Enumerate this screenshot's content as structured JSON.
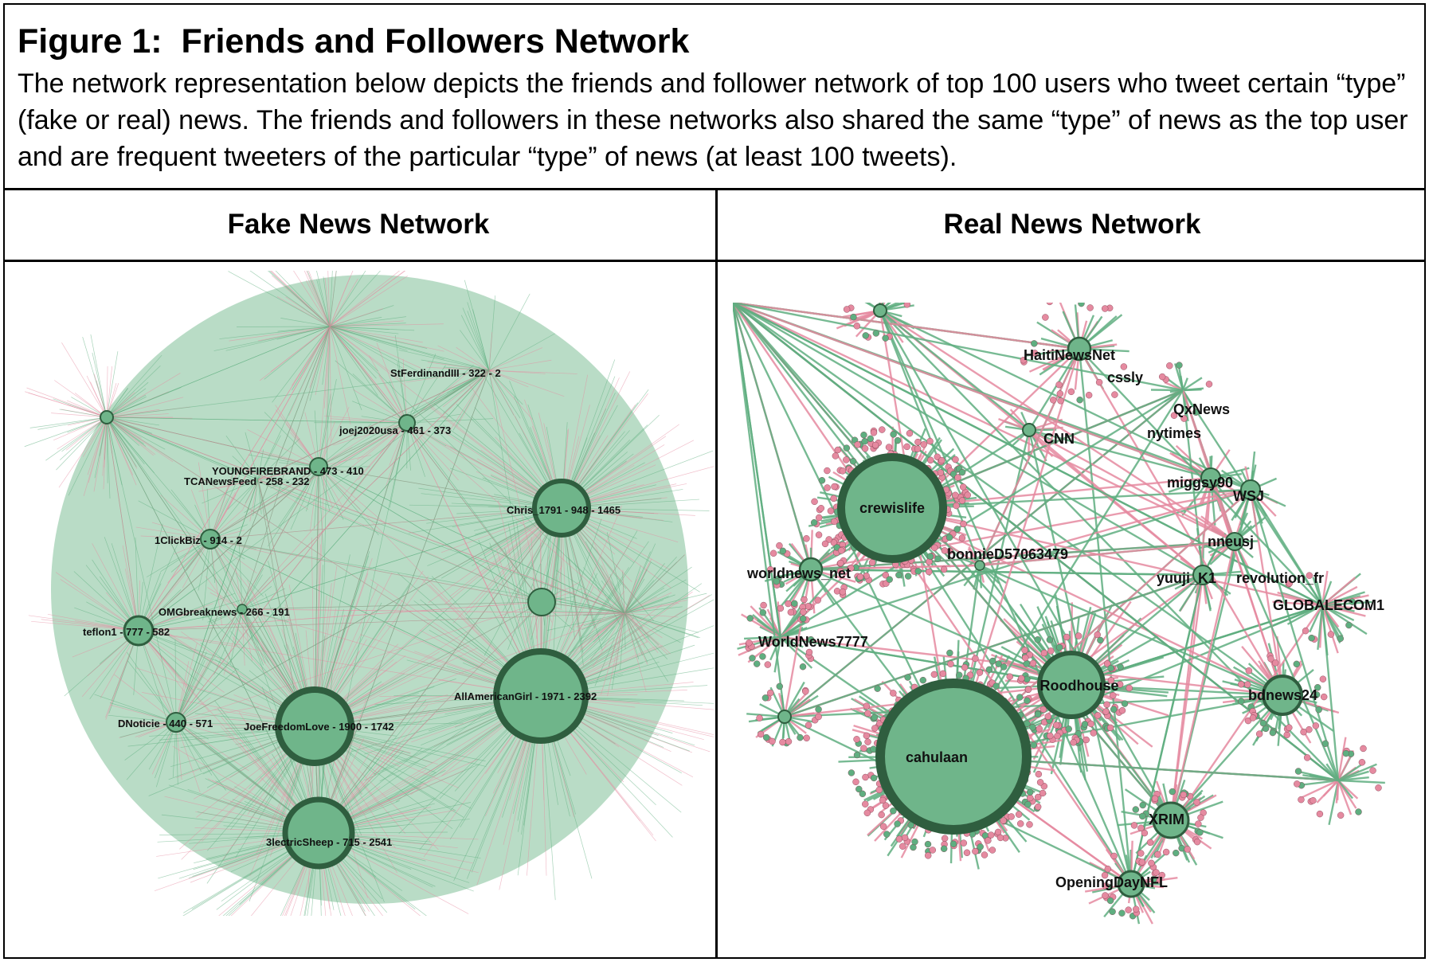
{
  "figure": {
    "title": "Figure 1:  Friends and Followers Network",
    "caption": "The network representation below depicts the friends and follower network of top 100 users who tweet certain “type” (fake or real) news. The friends and followers in these networks also shared the same “type” of news as the top user and are frequent tweeters of the particular “type” of news (at least 100 tweets)."
  },
  "colors": {
    "node_fill": "#6fb58a",
    "node_ring": "#2f5e3f",
    "edge_green": "#5fae80",
    "edge_pink": "#e58aa0"
  },
  "panels": {
    "fake": {
      "heading": "Fake News Network",
      "nodes": [
        {
          "label": "StFerdinandIII - 322 - 2"
        },
        {
          "label": "joej2020usa - 461 - 373"
        },
        {
          "label": "YOUNGFIREBRAND - 473 - 410"
        },
        {
          "label": "TCANewsFeed - 258 - 232"
        },
        {
          "label": "Chris_1791 - 948 - 1465"
        },
        {
          "label": "1ClickBiz - 914 - 2"
        },
        {
          "label": "OMGbreaknews - 266 - 191"
        },
        {
          "label": "teflon1 - 777 - 582"
        },
        {
          "label": "AllAmericanGirl - 1971 - 2392"
        },
        {
          "label": "DNoticie - 440 - 571"
        },
        {
          "label": "JoeFreedomLove - 1900 - 1742"
        },
        {
          "label": "3lectricSheep - 715 - 2541"
        }
      ]
    },
    "real": {
      "heading": "Real News Network",
      "nodes": [
        {
          "label": "HaitiNewsNet"
        },
        {
          "label": "cssly"
        },
        {
          "label": "QxNews"
        },
        {
          "label": "CNN"
        },
        {
          "label": "nytimes"
        },
        {
          "label": "miggsy90"
        },
        {
          "label": "WSJ"
        },
        {
          "label": "crewislife"
        },
        {
          "label": "nneusj"
        },
        {
          "label": "bonnieD57063479"
        },
        {
          "label": "yuuji_K1"
        },
        {
          "label": "revolution_fr"
        },
        {
          "label": "worldnews_net"
        },
        {
          "label": "GLOBALECOM1"
        },
        {
          "label": "WorldNews7777"
        },
        {
          "label": "Roodhouse"
        },
        {
          "label": "bdnews24"
        },
        {
          "label": "cahulaan"
        },
        {
          "label": "XRIM"
        },
        {
          "label": "OpeningDayNFL"
        }
      ]
    }
  }
}
